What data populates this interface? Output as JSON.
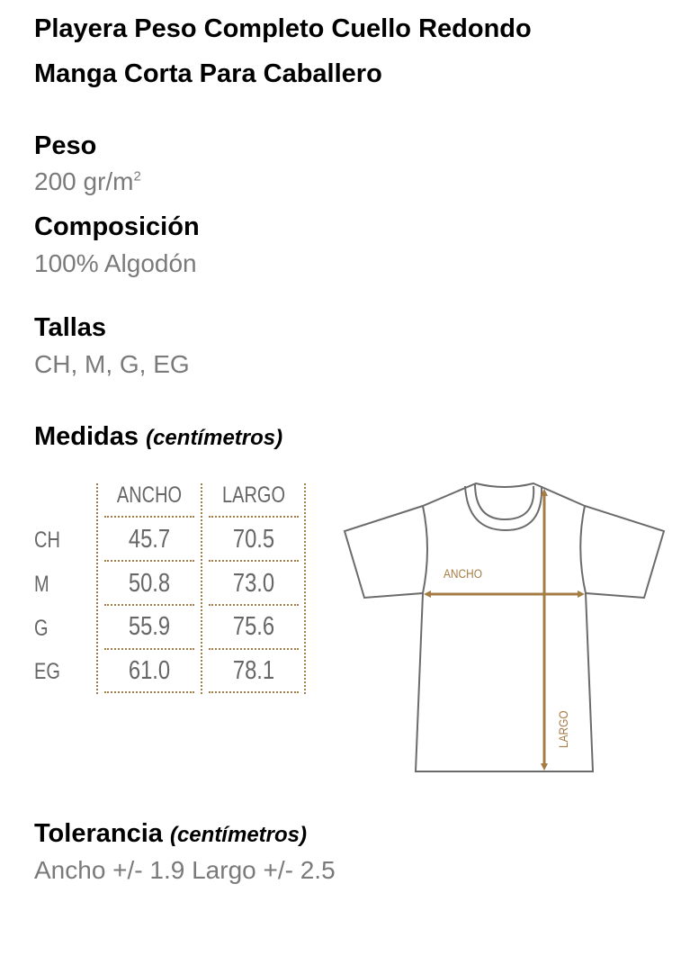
{
  "title_line1": "Playera Peso Completo Cuello Redondo",
  "title_line2": "Manga Corta Para Caballero",
  "peso": {
    "label": "Peso",
    "value": "200 gr/m",
    "sup": "2"
  },
  "composicion": {
    "label": "Composición",
    "value": "100% Algodón"
  },
  "tallas": {
    "label": "Tallas",
    "value": "CH, M, G, EG"
  },
  "medidas": {
    "label": "Medidas",
    "unit": "(centímetros)"
  },
  "table": {
    "headers": [
      "ANCHO",
      "LARGO"
    ],
    "rows": [
      {
        "size": "CH",
        "ancho": "45.7",
        "largo": "70.5"
      },
      {
        "size": "M",
        "ancho": "50.8",
        "largo": "73.0"
      },
      {
        "size": "G",
        "ancho": "55.9",
        "largo": "75.6"
      },
      {
        "size": "EG",
        "ancho": "61.0",
        "largo": "78.1"
      }
    ]
  },
  "diagram": {
    "ancho_label": "ANCHO",
    "largo_label": "LARGO",
    "accent": "#a57c44",
    "outline": "#6b6b6b"
  },
  "tolerancia": {
    "label": "Tolerancia",
    "unit": "(centímetros)",
    "value": "Ancho +/- 1.9 Largo +/- 2.5"
  }
}
